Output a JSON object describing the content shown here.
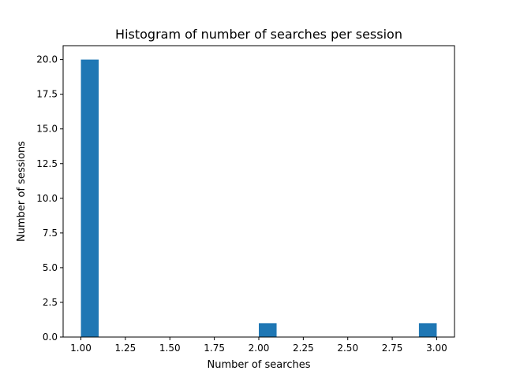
{
  "chart_data": {
    "type": "bar",
    "title": "Histogram of number of searches per session",
    "xlabel": "Number of searches",
    "ylabel": "Number of sessions",
    "bar_color": "#1f77b4",
    "xlim": [
      0.9,
      3.1
    ],
    "ylim": [
      0,
      21
    ],
    "bin_width": 0.1,
    "bins": [
      {
        "start": 1.0,
        "count": 20
      },
      {
        "start": 2.0,
        "count": 1
      },
      {
        "start": 2.9,
        "count": 1
      }
    ],
    "x_ticks": [
      {
        "value": 1.0,
        "label": "1.00"
      },
      {
        "value": 1.25,
        "label": "1.25"
      },
      {
        "value": 1.5,
        "label": "1.50"
      },
      {
        "value": 1.75,
        "label": "1.75"
      },
      {
        "value": 2.0,
        "label": "2.00"
      },
      {
        "value": 2.25,
        "label": "2.25"
      },
      {
        "value": 2.5,
        "label": "2.50"
      },
      {
        "value": 2.75,
        "label": "2.75"
      },
      {
        "value": 3.0,
        "label": "3.00"
      }
    ],
    "y_ticks": [
      {
        "value": 0,
        "label": "0.0"
      },
      {
        "value": 2.5,
        "label": "2.5"
      },
      {
        "value": 5,
        "label": "5.0"
      },
      {
        "value": 7.5,
        "label": "7.5"
      },
      {
        "value": 10,
        "label": "10.0"
      },
      {
        "value": 12.5,
        "label": "12.5"
      },
      {
        "value": 15,
        "label": "15.0"
      },
      {
        "value": 17.5,
        "label": "17.5"
      },
      {
        "value": 20,
        "label": "20.0"
      }
    ],
    "grid": false
  }
}
